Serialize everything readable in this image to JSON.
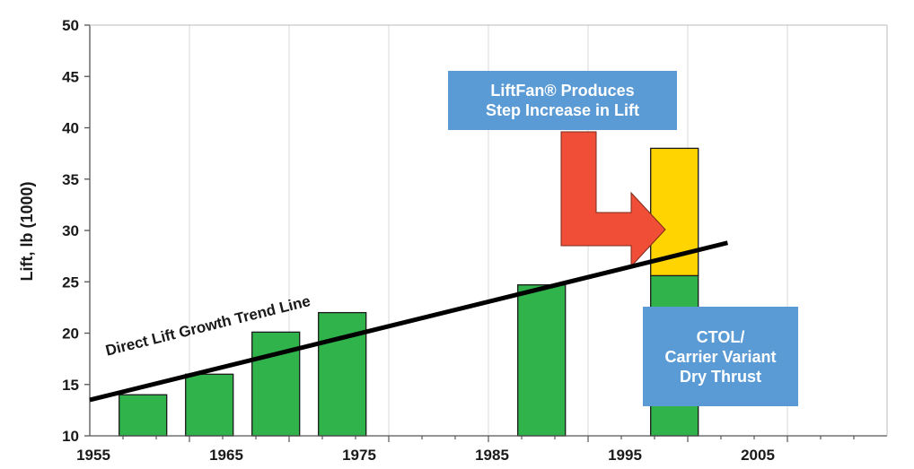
{
  "chart_data": {
    "type": "bar",
    "title": "",
    "xlabel": "",
    "ylabel": "Lift, lb (1000)",
    "ylim": [
      10,
      50
    ],
    "yticks": [
      10,
      15,
      20,
      25,
      30,
      35,
      40,
      45,
      50
    ],
    "xlim": [
      1955,
      2015
    ],
    "xticks": [
      1955,
      1965,
      1975,
      1985,
      1995,
      2005
    ],
    "grid": "vertical",
    "bars": [
      {
        "x": 1959,
        "value": 14,
        "color": "#2fb34a"
      },
      {
        "x": 1964,
        "value": 16,
        "color": "#2fb34a"
      },
      {
        "x": 1969,
        "value": 20.1,
        "color": "#2fb34a"
      },
      {
        "x": 1974,
        "value": 22,
        "color": "#2fb34a"
      },
      {
        "x": 1989,
        "value": 24.7,
        "color": "#2fb34a"
      },
      {
        "x": 1999,
        "value": 25.6,
        "color": "#2fb34a",
        "stack": {
          "value": 38,
          "color": "#ffd400"
        }
      }
    ],
    "trend_line": {
      "label": "Direct Lift Growth Trend Line",
      "from": [
        1955,
        13.5
      ],
      "to": [
        2003,
        28.8
      ],
      "color": "#000000"
    },
    "annotations": [
      {
        "id": "liftfan",
        "lines": [
          "LiftFan® Produces",
          "Step Increase in Lift"
        ]
      },
      {
        "id": "ctol",
        "lines": [
          "CTOL/",
          "Carrier Variant",
          "Dry Thrust"
        ]
      }
    ],
    "arrow_color": "#f04e37",
    "box_color": "#5b9bd5"
  }
}
